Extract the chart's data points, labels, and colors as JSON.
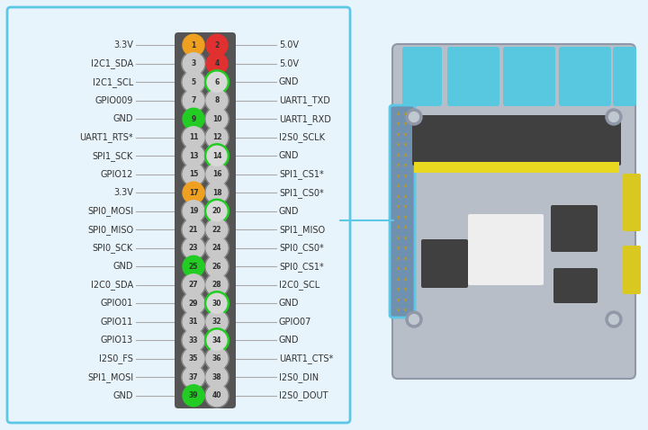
{
  "bg_color": "#e8f4fb",
  "border_color": "#5bc8e8",
  "header_bg": "#555555",
  "pins": [
    {
      "num": 1,
      "label_left": "3.3V",
      "fill": "#f0a020",
      "ring": null,
      "ring_color": null
    },
    {
      "num": 2,
      "label_right": "5.0V",
      "fill": "#e03030",
      "ring": null,
      "ring_color": null
    },
    {
      "num": 3,
      "label_left": "I2C1_SDA",
      "fill": "#c8c8c8",
      "ring": null,
      "ring_color": null
    },
    {
      "num": 4,
      "label_right": "5.0V",
      "fill": "#e03030",
      "ring": null,
      "ring_color": null
    },
    {
      "num": 5,
      "label_left": "I2C1_SCL",
      "fill": "#c8c8c8",
      "ring": null,
      "ring_color": null
    },
    {
      "num": 6,
      "label_right": "GND",
      "fill": "#c8c8c8",
      "ring": true,
      "ring_color": "#22cc22"
    },
    {
      "num": 7,
      "label_left": "GPIO009",
      "fill": "#c8c8c8",
      "ring": null,
      "ring_color": null
    },
    {
      "num": 8,
      "label_right": "UART1_TXD",
      "fill": "#c8c8c8",
      "ring": null,
      "ring_color": null
    },
    {
      "num": 9,
      "label_left": "GND",
      "fill": "#22cc22",
      "ring": null,
      "ring_color": null
    },
    {
      "num": 10,
      "label_right": "UART1_RXD",
      "fill": "#c8c8c8",
      "ring": null,
      "ring_color": null
    },
    {
      "num": 11,
      "label_left": "UART1_RTS*",
      "fill": "#c8c8c8",
      "ring": null,
      "ring_color": null
    },
    {
      "num": 12,
      "label_right": "I2S0_SCLK",
      "fill": "#c8c8c8",
      "ring": null,
      "ring_color": null
    },
    {
      "num": 13,
      "label_left": "SPI1_SCK",
      "fill": "#c8c8c8",
      "ring": null,
      "ring_color": null
    },
    {
      "num": 14,
      "label_right": "GND",
      "fill": "#c8c8c8",
      "ring": true,
      "ring_color": "#22cc22"
    },
    {
      "num": 15,
      "label_left": "GPIO12",
      "fill": "#c8c8c8",
      "ring": null,
      "ring_color": null
    },
    {
      "num": 16,
      "label_right": "SPI1_CS1*",
      "fill": "#c8c8c8",
      "ring": null,
      "ring_color": null
    },
    {
      "num": 17,
      "label_left": "3.3V",
      "fill": "#f0a020",
      "ring": null,
      "ring_color": null
    },
    {
      "num": 18,
      "label_right": "SPI1_CS0*",
      "fill": "#c8c8c8",
      "ring": null,
      "ring_color": null
    },
    {
      "num": 19,
      "label_left": "SPI0_MOSI",
      "fill": "#c8c8c8",
      "ring": null,
      "ring_color": null
    },
    {
      "num": 20,
      "label_right": "GND",
      "fill": "#c8c8c8",
      "ring": true,
      "ring_color": "#22cc22"
    },
    {
      "num": 21,
      "label_left": "SPI0_MISO",
      "fill": "#c8c8c8",
      "ring": null,
      "ring_color": null
    },
    {
      "num": 22,
      "label_right": "SPI1_MISO",
      "fill": "#c8c8c8",
      "ring": null,
      "ring_color": null
    },
    {
      "num": 23,
      "label_left": "SPI0_SCK",
      "fill": "#c8c8c8",
      "ring": null,
      "ring_color": null
    },
    {
      "num": 24,
      "label_right": "SPI0_CS0*",
      "fill": "#c8c8c8",
      "ring": null,
      "ring_color": null
    },
    {
      "num": 25,
      "label_left": "GND",
      "fill": "#22cc22",
      "ring": null,
      "ring_color": null
    },
    {
      "num": 26,
      "label_right": "SPI0_CS1*",
      "fill": "#c8c8c8",
      "ring": null,
      "ring_color": null
    },
    {
      "num": 27,
      "label_left": "I2C0_SDA",
      "fill": "#c8c8c8",
      "ring": null,
      "ring_color": null
    },
    {
      "num": 28,
      "label_right": "I2C0_SCL",
      "fill": "#c8c8c8",
      "ring": null,
      "ring_color": null
    },
    {
      "num": 29,
      "label_left": "GPIO01",
      "fill": "#c8c8c8",
      "ring": null,
      "ring_color": null
    },
    {
      "num": 30,
      "label_right": "GND",
      "fill": "#c8c8c8",
      "ring": true,
      "ring_color": "#22cc22"
    },
    {
      "num": 31,
      "label_left": "GPIO11",
      "fill": "#c8c8c8",
      "ring": null,
      "ring_color": null
    },
    {
      "num": 32,
      "label_right": "GPIO07",
      "fill": "#c8c8c8",
      "ring": null,
      "ring_color": null
    },
    {
      "num": 33,
      "label_left": "GPIO13",
      "fill": "#c8c8c8",
      "ring": null,
      "ring_color": null
    },
    {
      "num": 34,
      "label_right": "GND",
      "fill": "#c8c8c8",
      "ring": true,
      "ring_color": "#22cc22"
    },
    {
      "num": 35,
      "label_left": "I2S0_FS",
      "fill": "#c8c8c8",
      "ring": null,
      "ring_color": null
    },
    {
      "num": 36,
      "label_right": "UART1_CTS*",
      "fill": "#c8c8c8",
      "ring": null,
      "ring_color": null
    },
    {
      "num": 37,
      "label_left": "SPI1_MOSI",
      "fill": "#c8c8c8",
      "ring": null,
      "ring_color": null
    },
    {
      "num": 38,
      "label_right": "I2S0_DIN",
      "fill": "#c8c8c8",
      "ring": null,
      "ring_color": null
    },
    {
      "num": 39,
      "label_left": "GND",
      "fill": "#22cc22",
      "ring": null,
      "ring_color": null
    },
    {
      "num": 40,
      "label_right": "I2S0_DOUT",
      "fill": "#c8c8c8",
      "ring": null,
      "ring_color": null
    }
  ],
  "num_rows": 20,
  "fig_w": 7.2,
  "fig_h": 4.78,
  "dpi": 100,
  "font_size_label": 7.0,
  "font_size_pin": 5.5
}
